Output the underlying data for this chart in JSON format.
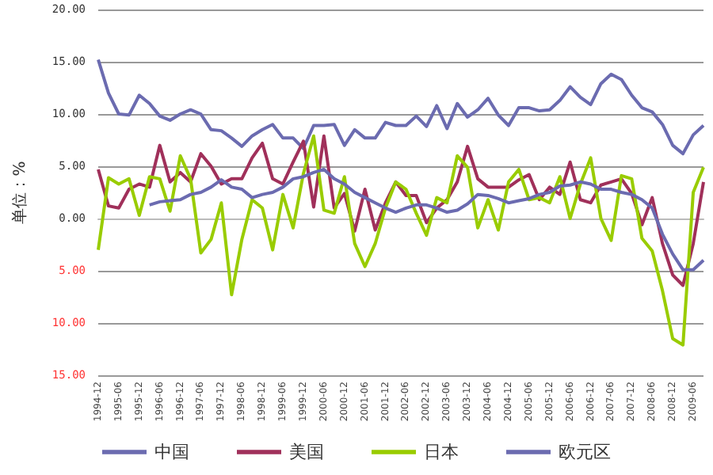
{
  "chart_data": {
    "type": "line",
    "ylabel": "单位：%",
    "categories": [
      "1994-12",
      null,
      "1995-06",
      null,
      "1995-12",
      null,
      "1996-06",
      null,
      "1996-12",
      null,
      "1997-06",
      null,
      "1997-12",
      null,
      "1998-06",
      null,
      "1998-12",
      null,
      "1999-06",
      null,
      "1999-12",
      null,
      "2000-06",
      null,
      "2000-12",
      null,
      "2001-06",
      null,
      "2001-12",
      null,
      "2002-06",
      null,
      "2002-12",
      null,
      "2003-06",
      null,
      "2003-12",
      null,
      "2004-06",
      null,
      "2004-12",
      null,
      "2005-06",
      null,
      "2005-12",
      null,
      "2006-06",
      null,
      "2006-12",
      null,
      "2007-06",
      null,
      "2007-12",
      null,
      "2008-06",
      null,
      "2008-12",
      null,
      "2009-06",
      null
    ],
    "series": [
      {
        "name": "中国",
        "color": "#6b6bb0",
        "values": [
          15.2,
          12.0,
          10.0,
          9.9,
          11.8,
          11.0,
          9.8,
          9.4,
          10.0,
          10.4,
          10.0,
          8.5,
          8.4,
          7.7,
          6.9,
          7.9,
          8.5,
          9.0,
          7.7,
          7.7,
          6.7,
          8.9,
          8.9,
          9.0,
          7.0,
          8.5,
          7.7,
          7.7,
          9.2,
          8.9,
          8.9,
          9.8,
          8.8,
          10.8,
          8.6,
          11.0,
          9.7,
          10.4,
          11.5,
          9.9,
          8.9,
          10.6,
          10.6,
          10.3,
          10.4,
          11.3,
          12.6,
          11.6,
          10.9,
          12.9,
          13.8,
          13.3,
          11.8,
          10.6,
          10.2,
          9.0,
          7.0,
          6.2,
          8.0,
          8.9
        ]
      },
      {
        "name": "美国",
        "color": "#a0305a",
        "values": [
          4.7,
          1.2,
          1.0,
          2.8,
          3.3,
          3.0,
          7.0,
          3.5,
          4.4,
          3.5,
          6.2,
          5.0,
          3.3,
          3.8,
          3.8,
          5.8,
          7.2,
          3.8,
          3.3,
          5.4,
          7.4,
          1.1,
          7.9,
          1.0,
          2.4,
          -1.2,
          2.8,
          -1.1,
          1.5,
          3.5,
          2.2,
          2.2,
          -0.4,
          1.0,
          1.8,
          3.5,
          6.9,
          3.8,
          3.0,
          3.0,
          3.0,
          3.7,
          4.2,
          1.8,
          3.0,
          2.3,
          5.4,
          1.8,
          1.5,
          3.2,
          3.5,
          3.8,
          2.4,
          -0.6,
          2.0,
          -2.4,
          -5.4,
          -6.4,
          -2.4,
          3.5
        ]
      },
      {
        "name": "日本",
        "color": "#99cc00",
        "values": [
          -3.0,
          3.9,
          3.3,
          3.8,
          0.3,
          4.0,
          3.8,
          0.7,
          6.0,
          3.8,
          -3.3,
          -2.0,
          1.5,
          -7.3,
          -2.0,
          1.8,
          1.0,
          -3.0,
          2.3,
          -0.9,
          4.3,
          7.9,
          0.8,
          0.5,
          4.0,
          -2.4,
          -4.6,
          -2.4,
          1.0,
          3.5,
          2.8,
          0.5,
          -1.6,
          2.0,
          1.5,
          6.0,
          4.9,
          -0.9,
          1.8,
          -1.1,
          3.5,
          4.7,
          1.8,
          2.0,
          1.5,
          4.0,
          0.0,
          3.3,
          5.8,
          0.0,
          -2.1,
          4.1,
          3.8,
          -1.9,
          -3.1,
          -6.9,
          -11.5,
          -12.1,
          2.5,
          4.9
        ]
      },
      {
        "name": "欧元区",
        "color": "#6b6bb0",
        "values": [
          null,
          null,
          null,
          null,
          null,
          1.3,
          1.6,
          1.7,
          1.8,
          2.3,
          2.5,
          3.0,
          3.7,
          3.0,
          2.8,
          2.0,
          2.3,
          2.5,
          3.0,
          3.8,
          4.0,
          4.4,
          4.7,
          3.8,
          3.3,
          2.5,
          2.0,
          1.5,
          1.0,
          0.6,
          1.0,
          1.3,
          1.3,
          1.0,
          0.6,
          0.8,
          1.4,
          2.3,
          2.2,
          1.9,
          1.5,
          1.7,
          1.9,
          2.3,
          2.5,
          3.1,
          3.2,
          3.5,
          3.3,
          2.8,
          2.8,
          2.5,
          2.3,
          1.8,
          1.0,
          -1.5,
          -3.4,
          -4.9,
          -4.9,
          -4.0
        ]
      }
    ],
    "ylim": [
      -15,
      20
    ],
    "yticks": [
      {
        "value": -15,
        "label": "15.00"
      },
      {
        "value": -10,
        "label": "10.00"
      },
      {
        "value": -5,
        "label": "5.00"
      },
      {
        "value": 0,
        "label": "0.00"
      },
      {
        "value": 5,
        "label": "5.00"
      },
      {
        "value": 10,
        "label": "10.00"
      },
      {
        "value": 15,
        "label": "15.00"
      },
      {
        "value": 20,
        "label": "20.00"
      }
    ],
    "grid": "y",
    "legend": "bottom",
    "marker": "none",
    "line_style": "solid"
  }
}
